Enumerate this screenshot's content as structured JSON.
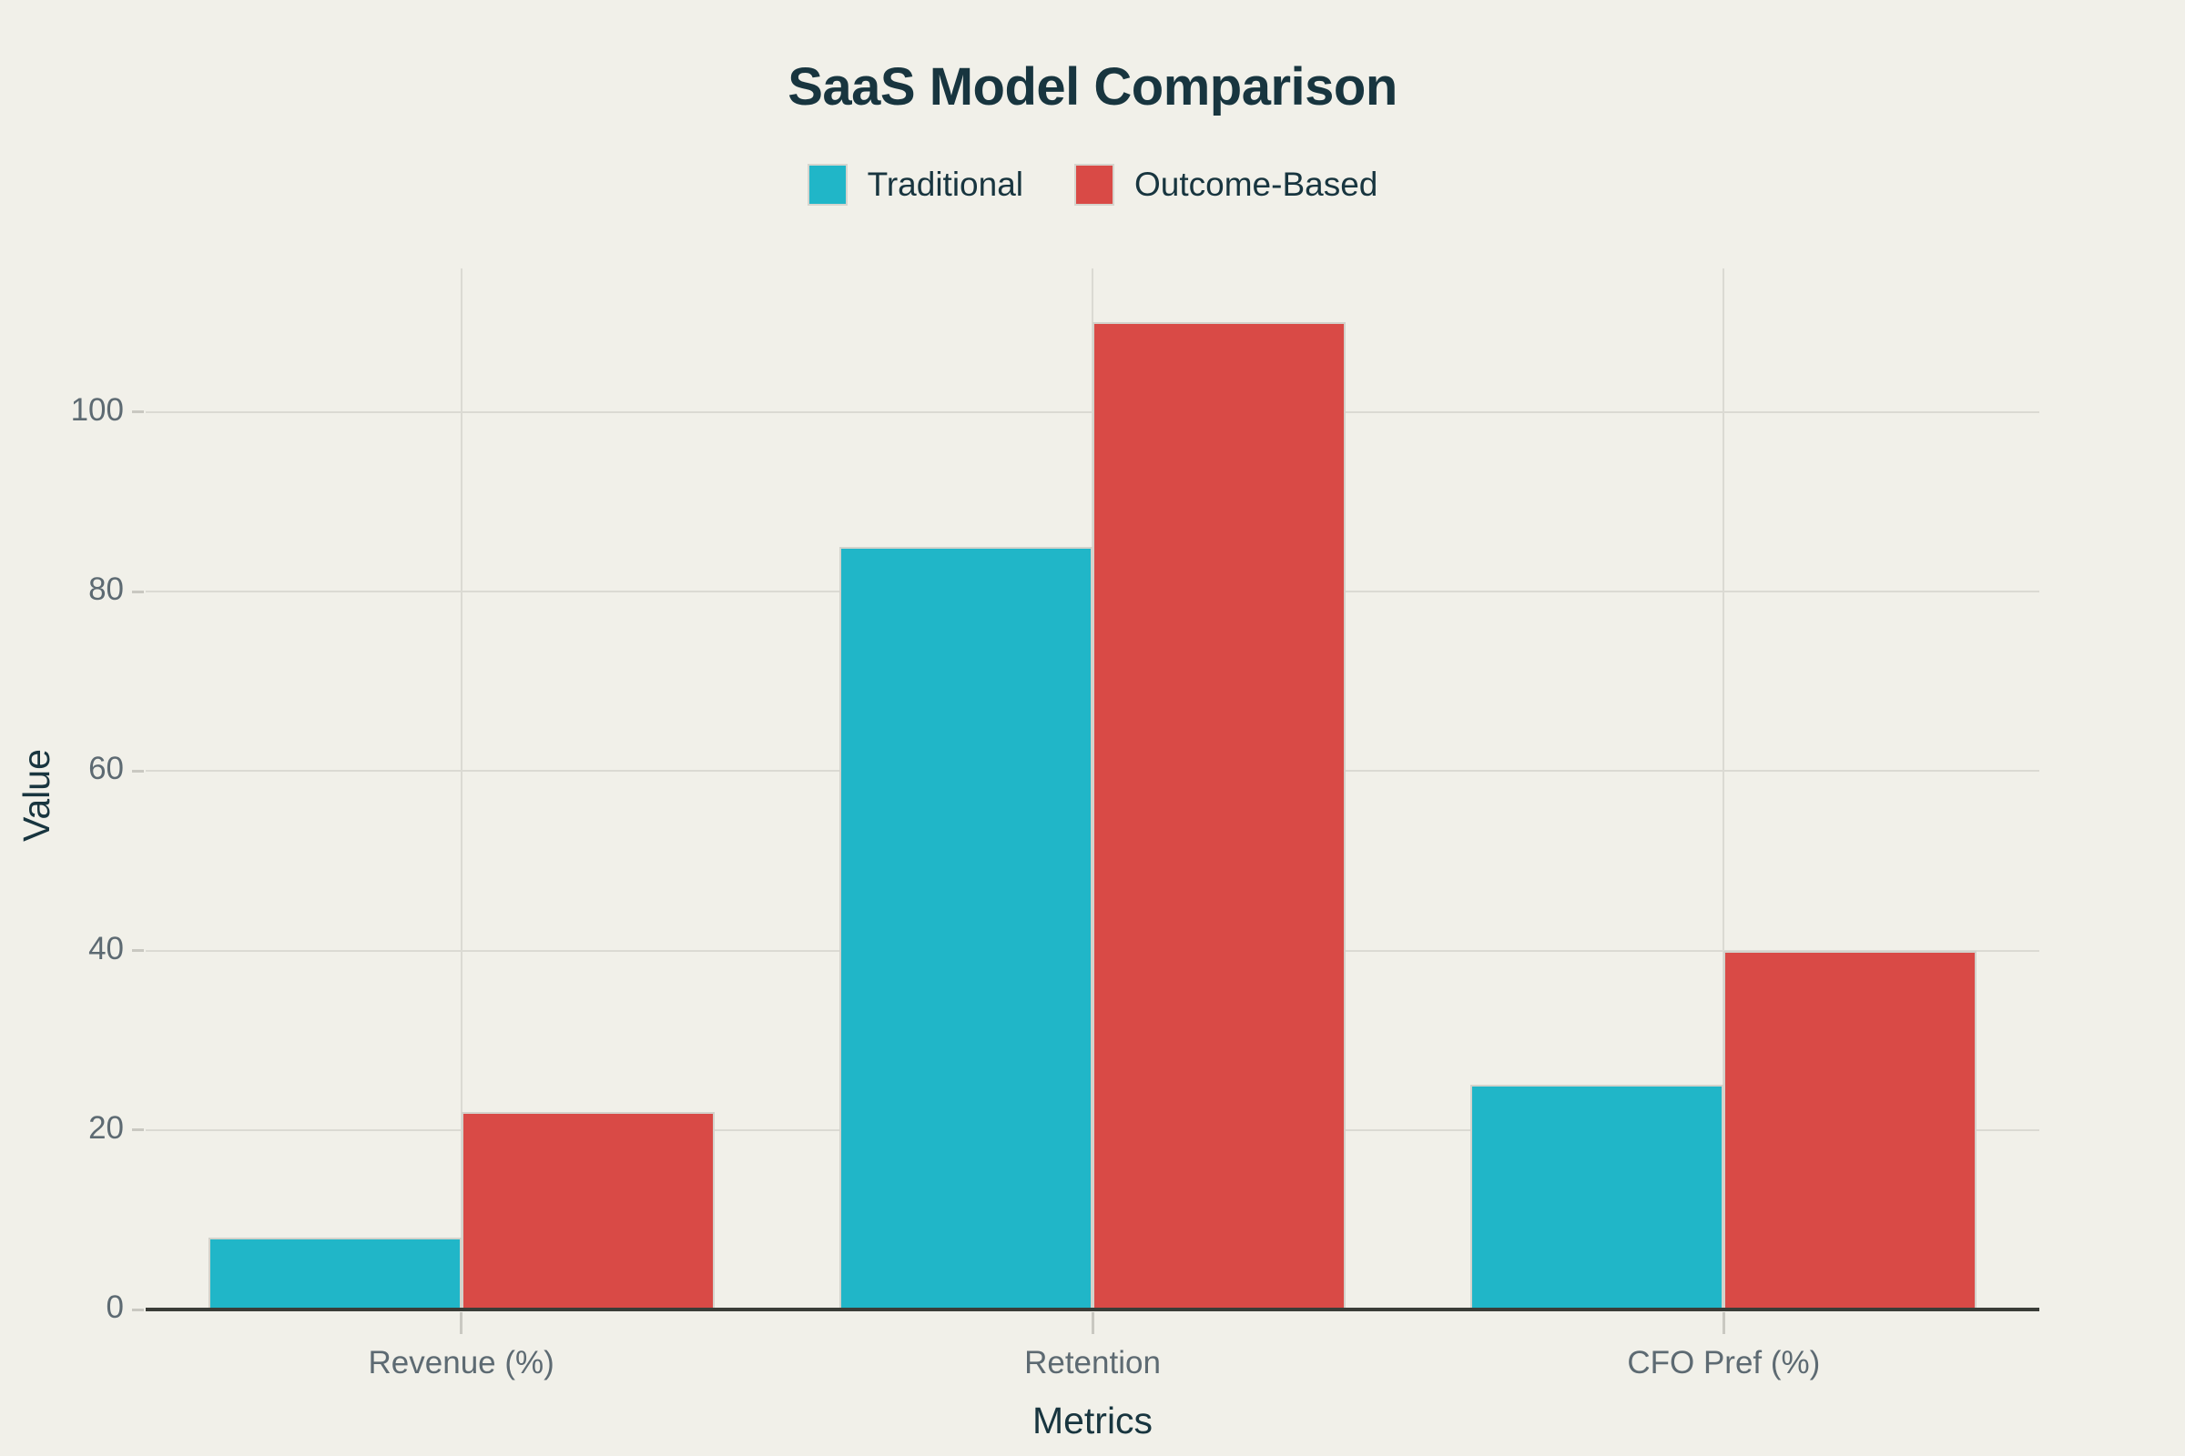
{
  "title": "SaaS Model Comparison",
  "colors": {
    "background": "#f1f0e9",
    "title_text": "#18353f",
    "tick_text": "#5d6a72",
    "axis_line": "#3a3d38",
    "gridline": "#dbdad3",
    "tick_mark": "#c9c8c1",
    "series_traditional": "#20b6c8",
    "series_outcome_based": "#d94a46"
  },
  "legend": {
    "position": "top",
    "items": [
      {
        "label": "Traditional",
        "color": "#20b6c8"
      },
      {
        "label": "Outcome-Based",
        "color": "#d94a46"
      }
    ]
  },
  "chart_data": {
    "type": "bar",
    "title": "SaaS Model Comparison",
    "xlabel": "Metrics",
    "ylabel": "Value",
    "categories": [
      "Revenue (%)",
      "Retention",
      "CFO Pref (%)"
    ],
    "series": [
      {
        "name": "Traditional",
        "color": "#20b6c8",
        "values": [
          8,
          85,
          25
        ]
      },
      {
        "name": "Outcome-Based",
        "color": "#d94a46",
        "values": [
          22,
          110,
          40
        ]
      }
    ],
    "yticks": [
      0,
      20,
      40,
      60,
      80,
      100
    ],
    "ylim": [
      0,
      116
    ],
    "grid": true,
    "legend_position": "top"
  }
}
